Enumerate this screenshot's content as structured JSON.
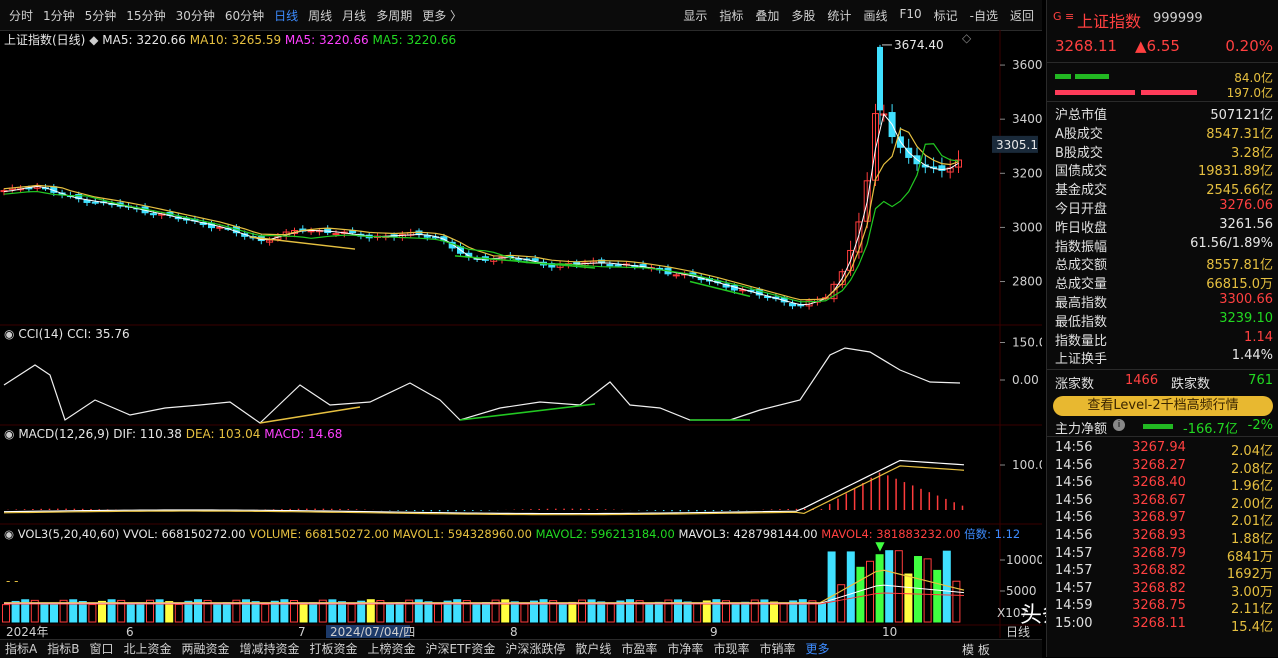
{
  "toolbar": {
    "periods": [
      "分时",
      "1分钟",
      "5分钟",
      "15分钟",
      "30分钟",
      "60分钟",
      "日线",
      "周线",
      "月线",
      "多周期",
      "更多 〉"
    ],
    "active_period": "日线",
    "tools": [
      "显示",
      "指标",
      "叠加",
      "多股",
      "统计",
      "画线",
      "F10",
      "标记",
      "-自选",
      "返回"
    ]
  },
  "main_legend": {
    "name": "上证指数(日线)",
    "ma5": "MA5: 3220.66",
    "ma10": "MA10: 3265.59",
    "ma5b": "MA5: 3220.66",
    "ma5c": "MA5: 3220.66"
  },
  "price_axis": [
    "3600",
    "3400",
    "3200",
    "3000",
    "2800"
  ],
  "price_current": "3305.1",
  "price_high_label": "3674.40",
  "cci_legend": {
    "name": "CCI(14)",
    "value": "CCI: 35.76"
  },
  "cci_axis": [
    "150.0",
    "0.00"
  ],
  "macd_legend": {
    "name": "MACD(12,26,9)",
    "dif": "DIF: 110.38",
    "dea": "DEA: 103.04",
    "macd": "MACD: 14.68"
  },
  "macd_axis": [
    "100.0"
  ],
  "vol_legend": {
    "name": "VOL3(5,20,40,60)",
    "vvol": "VVOL: 668150272.00",
    "volume": "VOLUME: 668150272.00",
    "mavol1": "MAVOL1: 594328960.00",
    "mavol2": "MAVOL2: 596213184.00",
    "mavol3": "MAVOL3: 428798144.00",
    "mavol4": "MAVOL4: 381883232.00",
    "extra": "倍数: 1.12"
  },
  "vol_axis": [
    "10000",
    "5000"
  ],
  "vol_unit": "X107",
  "date_axis": [
    "2024年",
    "6",
    "7",
    "2024/07/04/四",
    "8",
    "9",
    "10"
  ],
  "date_axis_right": "日线",
  "bottom_tabs": [
    "指标A",
    "指标B",
    "窗口",
    "北上资金",
    "两融资金",
    "增减持资金",
    "打板资金",
    "上榜资金",
    "沪深ETF资金",
    "沪深涨跌停",
    "散户线",
    "市盈率",
    "市净率",
    "市现率",
    "市销率",
    "更多"
  ],
  "bottom_right": "模 板",
  "panel": {
    "marker": "G ≡",
    "title": "上证指数",
    "code": "999999",
    "price": "3268.11",
    "change": "▲6.55",
    "change_pct": "0.20%",
    "bar1_value": "84.0亿",
    "bar2_value": "197.0亿",
    "stats": [
      {
        "k": "沪总市值",
        "v": "507121亿",
        "c": "white"
      },
      {
        "k": "A股成交",
        "v": "8547.31亿",
        "c": "yellow"
      },
      {
        "k": "B股成交",
        "v": "3.28亿",
        "c": "yellow"
      },
      {
        "k": "国债成交",
        "v": "19831.89亿",
        "c": "yellow"
      },
      {
        "k": "基金成交",
        "v": "2545.66亿",
        "c": "yellow"
      },
      {
        "k": "今日开盘",
        "v": "3276.06",
        "c": "red"
      },
      {
        "k": "昨日收盘",
        "v": "3261.56",
        "c": "white"
      },
      {
        "k": "指数振幅",
        "v": "61.56/1.89%",
        "c": "white"
      },
      {
        "k": "总成交额",
        "v": "8557.81亿",
        "c": "yellow"
      },
      {
        "k": "总成交量",
        "v": "66815.0万",
        "c": "yellow"
      },
      {
        "k": "最高指数",
        "v": "3300.66",
        "c": "red"
      },
      {
        "k": "最低指数",
        "v": "3239.10",
        "c": "green"
      },
      {
        "k": "指数量比",
        "v": "1.14",
        "c": "red"
      },
      {
        "k": "上证换手",
        "v": "1.44%",
        "c": "white"
      }
    ],
    "up_label": "涨家数",
    "up_value": "1466",
    "down_label": "跌家数",
    "down_value": "761",
    "level2_button": "查看Level-2千档高频行情",
    "flow_label": "主力净额",
    "flow_value": "-166.7亿",
    "flow_pct": "-2%",
    "ticks": [
      {
        "t": "14:56",
        "p": "3267.94",
        "v": "2.04亿"
      },
      {
        "t": "14:56",
        "p": "3268.27",
        "v": "2.08亿"
      },
      {
        "t": "14:56",
        "p": "3268.40",
        "v": "1.96亿"
      },
      {
        "t": "14:56",
        "p": "3268.67",
        "v": "2.00亿"
      },
      {
        "t": "14:56",
        "p": "3268.97",
        "v": "2.01亿"
      },
      {
        "t": "14:56",
        "p": "3268.93",
        "v": "1.88亿"
      },
      {
        "t": "14:57",
        "p": "3268.79",
        "v": "6841万"
      },
      {
        "t": "14:57",
        "p": "3268.82",
        "v": "1692万"
      },
      {
        "t": "14:57",
        "p": "3268.82",
        "v": "3.00万"
      },
      {
        "t": "14:59",
        "p": "3268.75",
        "v": "2.11亿"
      },
      {
        "t": "15:00",
        "p": "3268.11",
        "v": "15.4亿"
      }
    ]
  },
  "watermark": "头条 @虎爸杂记",
  "colors": {
    "up": "#ff3c3c",
    "down": "#40d8ff",
    "ma5": "#ffffff",
    "ma10": "#e6c040",
    "ma20": "#ff40ff",
    "ma_green": "#22c822",
    "accent": "#3d8cff"
  }
}
